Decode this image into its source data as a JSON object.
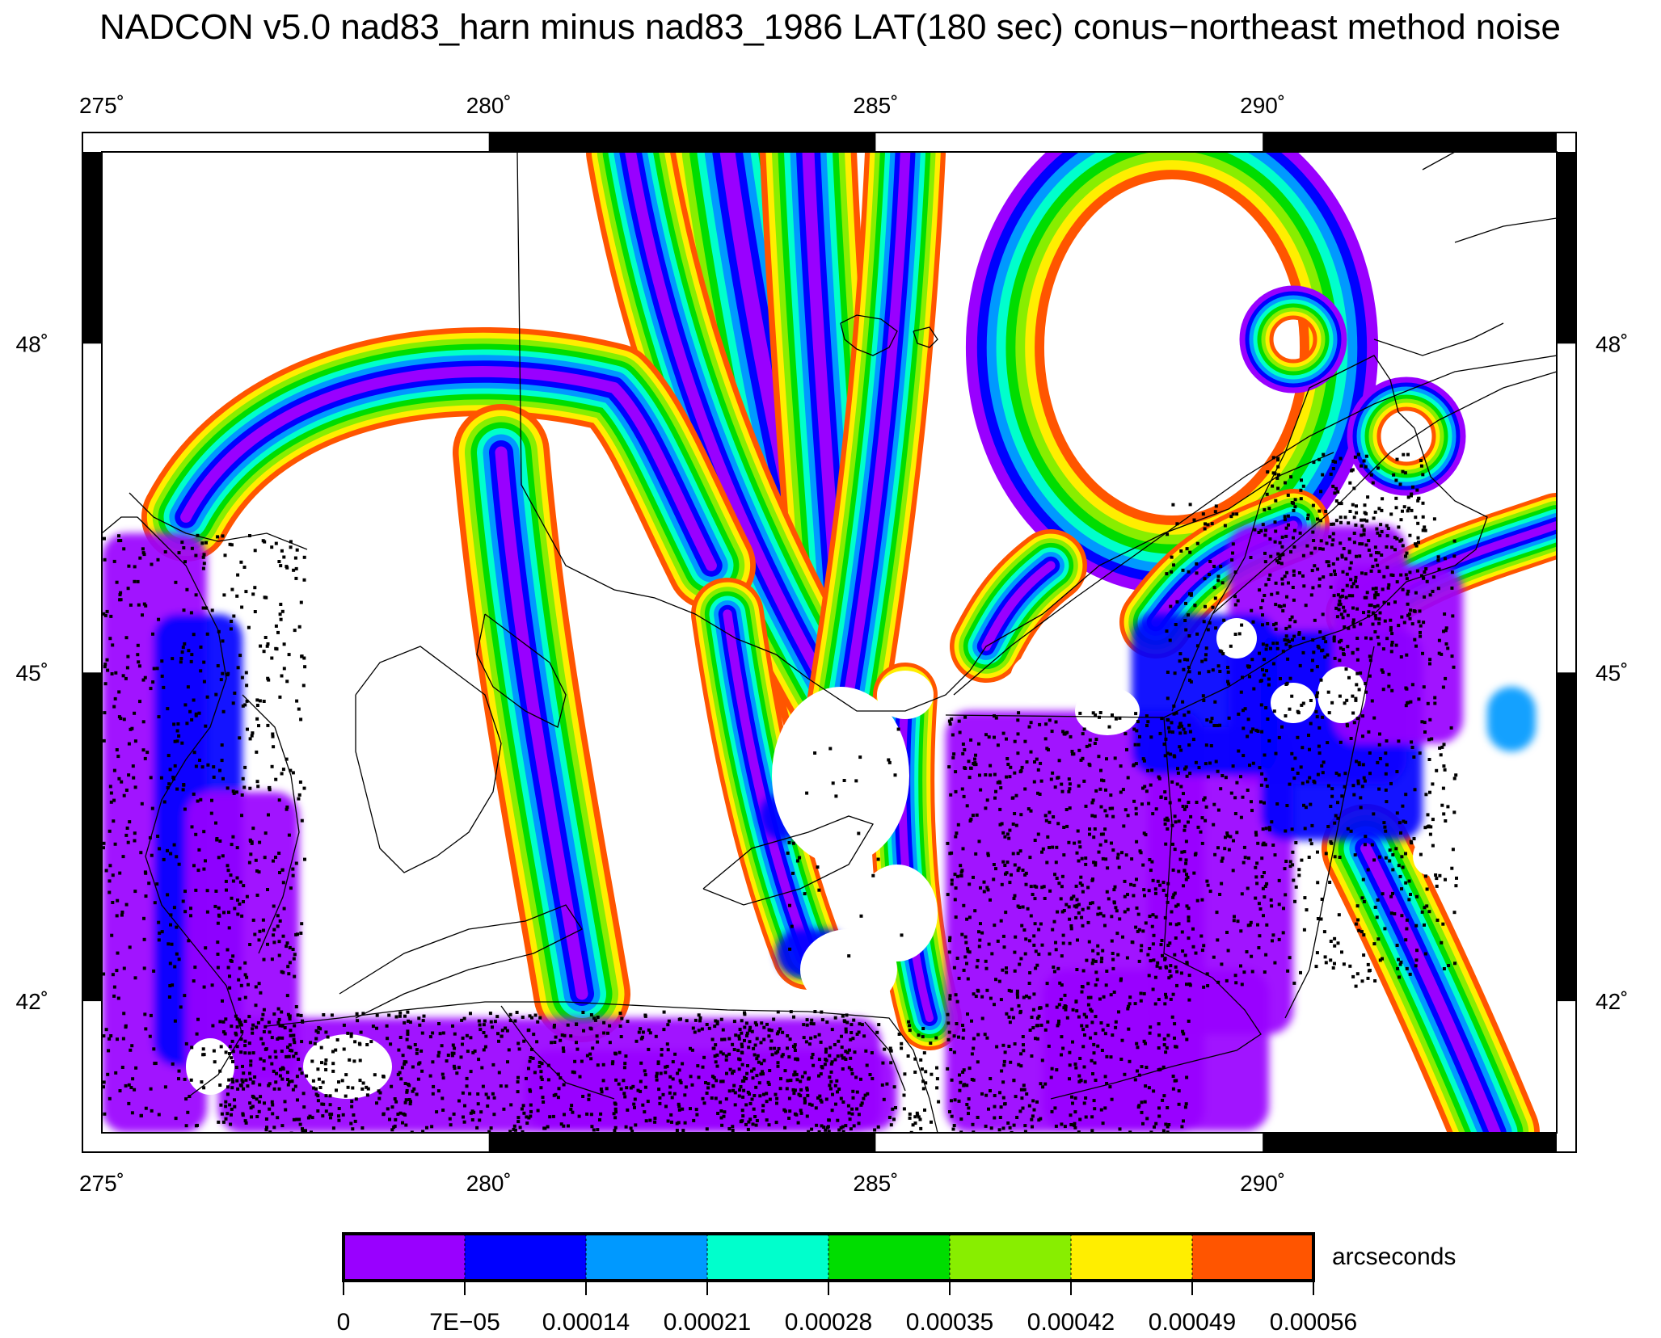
{
  "title": "NADCON v5.0 nad83_harn minus nad83_1986 LAT(180 sec) conus−northeast method noise",
  "map": {
    "lon_range": [
      275,
      293.8
    ],
    "lat_range": [
      40.8,
      49.75
    ],
    "lon_ticks": [
      {
        "value": 275,
        "label": "275˚"
      },
      {
        "value": 280,
        "label": "280˚"
      },
      {
        "value": 285,
        "label": "285˚"
      },
      {
        "value": 290,
        "label": "290˚"
      }
    ],
    "lat_ticks": [
      {
        "value": 48,
        "label": "48˚"
      },
      {
        "value": 45,
        "label": "45˚"
      },
      {
        "value": 42,
        "label": "42˚"
      }
    ]
  },
  "colorbar": {
    "unit": "arcseconds",
    "colors": [
      "#9900ff",
      "#0000ff",
      "#0099ff",
      "#00ffcc",
      "#00dd00",
      "#88ee00",
      "#ffee00",
      "#ff5500"
    ],
    "tick_labels": [
      "0",
      "7E−05",
      "0.00014",
      "0.00021",
      "0.00028",
      "0.00035",
      "0.00042",
      "0.00049",
      "0.00056"
    ]
  },
  "chart_data": {
    "type": "heatmap",
    "title": "NADCON v5.0 nad83_harn minus nad83_1986 LAT(180 sec) conus−northeast method noise",
    "xlabel": "",
    "ylabel": "",
    "x_range_deg": [
      275,
      293.8
    ],
    "y_range_deg": [
      40.8,
      49.75
    ],
    "colorbar_range": [
      0,
      0.00056
    ],
    "colorbar_step": 7e-05,
    "unit": "arcseconds"
  },
  "colors": {
    "background": "#ffffff",
    "coastline": "#000000",
    "data_points": "#000000"
  }
}
